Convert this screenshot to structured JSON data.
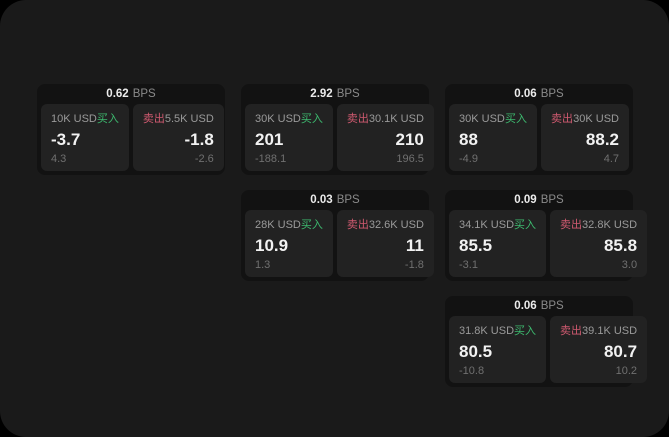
{
  "colors": {
    "buy_green": "#3dba6f",
    "sell_red": "#d05a70",
    "frame_bg": "#1a1a1a",
    "card_bg": "#121212",
    "panel_bg": "#222222"
  },
  "cards": [
    {
      "bps": "0.62",
      "bps_unit": "BPS",
      "buy": {
        "amount": "10K USD",
        "side": "买入",
        "price": "-3.7",
        "change": "4.3"
      },
      "sell": {
        "side": "卖出",
        "amount": "5.5K USD",
        "price": "-1.8",
        "change": "-2.6"
      }
    },
    {
      "bps": "2.92",
      "bps_unit": "BPS",
      "buy": {
        "amount": "30K USD",
        "side": "买入",
        "price": "201",
        "change": "-188.1"
      },
      "sell": {
        "side": "卖出",
        "amount": "30.1K USD",
        "price": "210",
        "change": "196.5"
      }
    },
    {
      "bps": "0.06",
      "bps_unit": "BPS",
      "buy": {
        "amount": "30K USD",
        "side": "买入",
        "price": "88",
        "change": "-4.9"
      },
      "sell": {
        "side": "卖出",
        "amount": "30K USD",
        "price": "88.2",
        "change": "4.7"
      }
    },
    {
      "bps": "0.03",
      "bps_unit": "BPS",
      "buy": {
        "amount": "28K USD",
        "side": "买入",
        "price": "10.9",
        "change": "1.3"
      },
      "sell": {
        "side": "卖出",
        "amount": "32.6K USD",
        "price": "11",
        "change": "-1.8"
      }
    },
    {
      "bps": "0.09",
      "bps_unit": "BPS",
      "buy": {
        "amount": "34.1K USD",
        "side": "买入",
        "price": "85.5",
        "change": "-3.1"
      },
      "sell": {
        "side": "卖出",
        "amount": "32.8K USD",
        "price": "85.8",
        "change": "3.0"
      }
    },
    {
      "bps": "0.06",
      "bps_unit": "BPS",
      "buy": {
        "amount": "31.8K USD",
        "side": "买入",
        "price": "80.5",
        "change": "-10.8"
      },
      "sell": {
        "side": "卖出",
        "amount": "39.1K USD",
        "price": "80.7",
        "change": "10.2"
      }
    }
  ]
}
